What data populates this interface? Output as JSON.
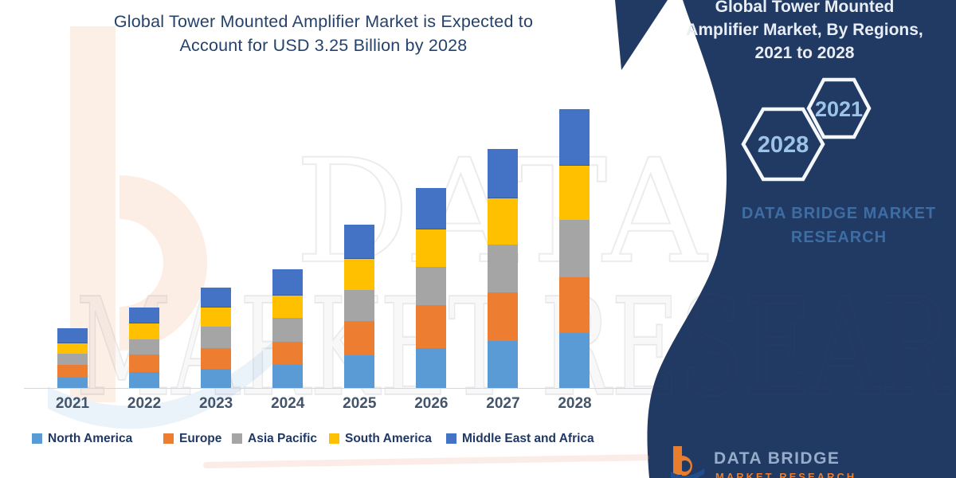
{
  "header": {
    "title": "Global Tower Mounted Amplifier Market is Expected to Account for USD 3.25 Billion by 2028",
    "title_line1": "Global Tower Mounted Amplifier Market is Expected to",
    "title_line2": "Account for USD 3.25 Billion by 2028",
    "text_color": "#24426B"
  },
  "panel": {
    "bg_color": "#213A63",
    "title": "Global Tower Mounted Amplifier Market, By Regions, 2021 to 2028",
    "title_line1": "Global Tower Mounted",
    "title_line2": "Amplifier Market, By Regions,",
    "title_line3": "2021 to 2028",
    "hexagon_labels": [
      "2028",
      "2021"
    ],
    "hexagon_text_color": "#9DC3E6",
    "brand_line1": "DATA BRIDGE MARKET",
    "brand_line2": "RESEARCH",
    "brand_color": "#3E6DA3"
  },
  "footer_logo": {
    "name": "DATA BRIDGE",
    "subname": "MARKET RESEARCH",
    "icon_color": "#E87D2E"
  },
  "watermark": {
    "row1": "DATA BRIDGE",
    "row2": "MARKET RESEARCH"
  },
  "chart_data": {
    "type": "bar",
    "stacked": true,
    "title": "Global Tower Mounted Amplifier Market is Expected to Account for USD 3.25 Billion by 2028",
    "unit": "USD Billion",
    "categories": [
      "2021",
      "2022",
      "2023",
      "2024",
      "2025",
      "2026",
      "2027",
      "2028"
    ],
    "series": [
      {
        "name": "North America",
        "color": "#5B9BD5",
        "values": [
          0.12,
          0.19,
          0.22,
          0.27,
          0.38,
          0.47,
          0.55,
          0.64
        ]
      },
      {
        "name": "Europe",
        "color": "#ED7D31",
        "values": [
          0.15,
          0.21,
          0.24,
          0.27,
          0.4,
          0.5,
          0.57,
          0.65
        ]
      },
      {
        "name": "Asia Pacific",
        "color": "#A5A5A5",
        "values": [
          0.13,
          0.18,
          0.25,
          0.28,
          0.36,
          0.45,
          0.56,
          0.67
        ]
      },
      {
        "name": "South America",
        "color": "#FFC000",
        "values": [
          0.13,
          0.2,
          0.23,
          0.27,
          0.37,
          0.45,
          0.55,
          0.64
        ]
      },
      {
        "name": "Middle East and Africa",
        "color": "#4472C4",
        "values": [
          0.17,
          0.18,
          0.22,
          0.3,
          0.39,
          0.48,
          0.57,
          0.65
        ]
      }
    ],
    "totals": [
      0.7,
      0.96,
      1.16,
      1.39,
      1.9,
      2.35,
      2.8,
      3.25
    ],
    "ylim": [
      0,
      3.5
    ],
    "gridlines": false,
    "y_axis_visible": false,
    "legend_position": "bottom"
  }
}
